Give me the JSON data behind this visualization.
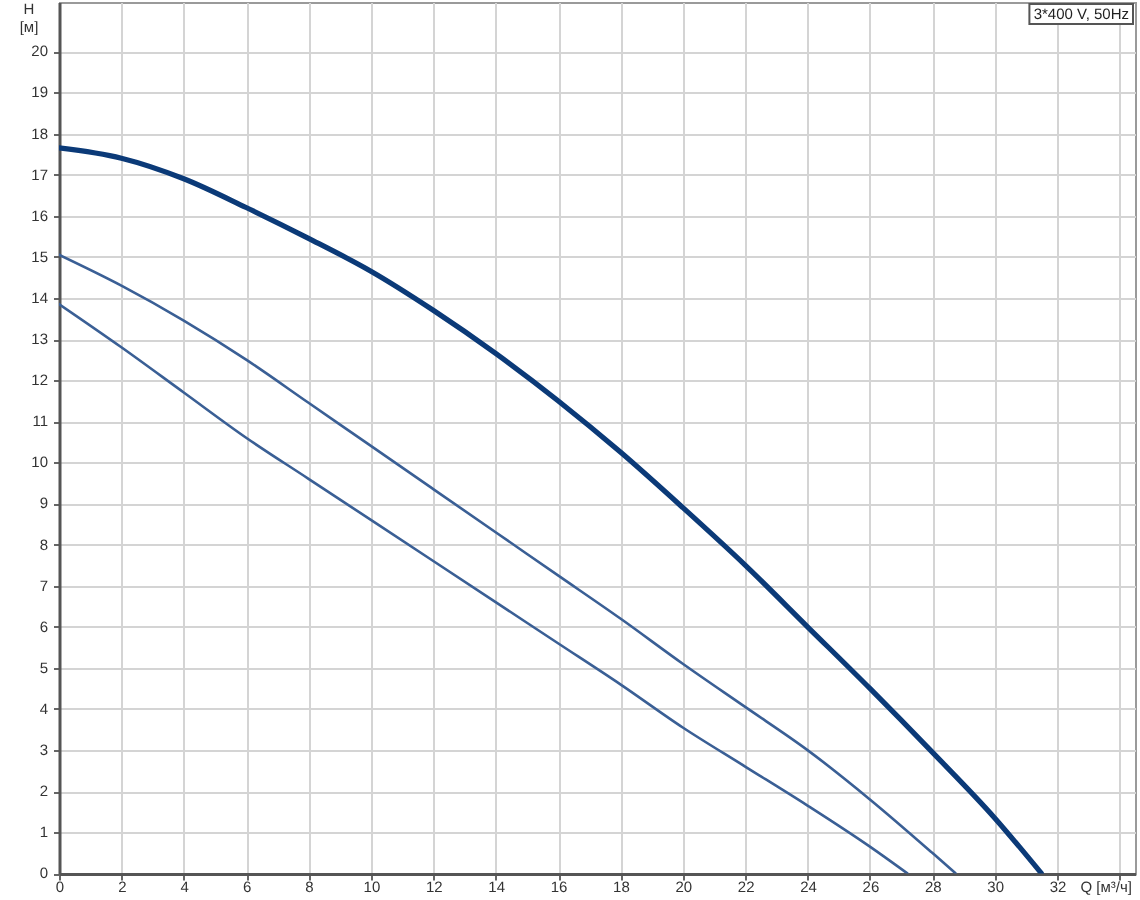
{
  "chart_data": {
    "type": "line",
    "xlabel": "Q [м³/ч]",
    "ylabel": "H [м]",
    "annotations": [
      "3*400 V, 50Hz"
    ],
    "series": [
      {
        "color": "#0b3a78",
        "x": [
          0,
          2,
          4,
          6,
          8,
          10,
          12,
          14,
          16,
          18,
          20,
          22,
          24,
          26,
          28,
          30,
          31.5
        ],
        "values": [
          17.65,
          17.4,
          16.9,
          16.2,
          15.45,
          14.65,
          13.7,
          12.65,
          11.5,
          10.25,
          8.9,
          7.5,
          6.0,
          4.5,
          2.95,
          1.35,
          0
        ]
      },
      {
        "color": "#3a5f95",
        "x": [
          0,
          2,
          4,
          6,
          8,
          10,
          12,
          14,
          16,
          18,
          20,
          22,
          24,
          26,
          28,
          28.75
        ],
        "values": [
          15.05,
          14.3,
          13.45,
          12.5,
          11.45,
          10.4,
          9.35,
          8.3,
          7.25,
          6.2,
          5.1,
          4.05,
          3.0,
          1.8,
          0.5,
          0
        ]
      },
      {
        "color": "#3a5f95",
        "x": [
          0,
          2,
          4,
          6,
          8,
          10,
          12,
          14,
          16,
          18,
          20,
          22,
          24,
          26,
          27.2
        ],
        "values": [
          13.85,
          12.8,
          11.7,
          10.6,
          9.6,
          8.6,
          7.6,
          6.6,
          5.6,
          4.6,
          3.55,
          2.6,
          1.65,
          0.65,
          0
        ]
      }
    ],
    "xlim": [
      0,
      34.5
    ],
    "ylim": [
      0,
      21.2
    ],
    "xticks": [
      0,
      2,
      4,
      6,
      8,
      10,
      12,
      14,
      16,
      18,
      20,
      22,
      24,
      26,
      28,
      30,
      32,
      {
        "value": 34,
        "label": null
      }
    ],
    "yticks": [
      0,
      1,
      2,
      3,
      4,
      5,
      6,
      7,
      8,
      9,
      10,
      11,
      12,
      13,
      14,
      15,
      16,
      17,
      18,
      19,
      20
    ],
    "grid": true,
    "marker": "none",
    "line_style": "solid"
  }
}
